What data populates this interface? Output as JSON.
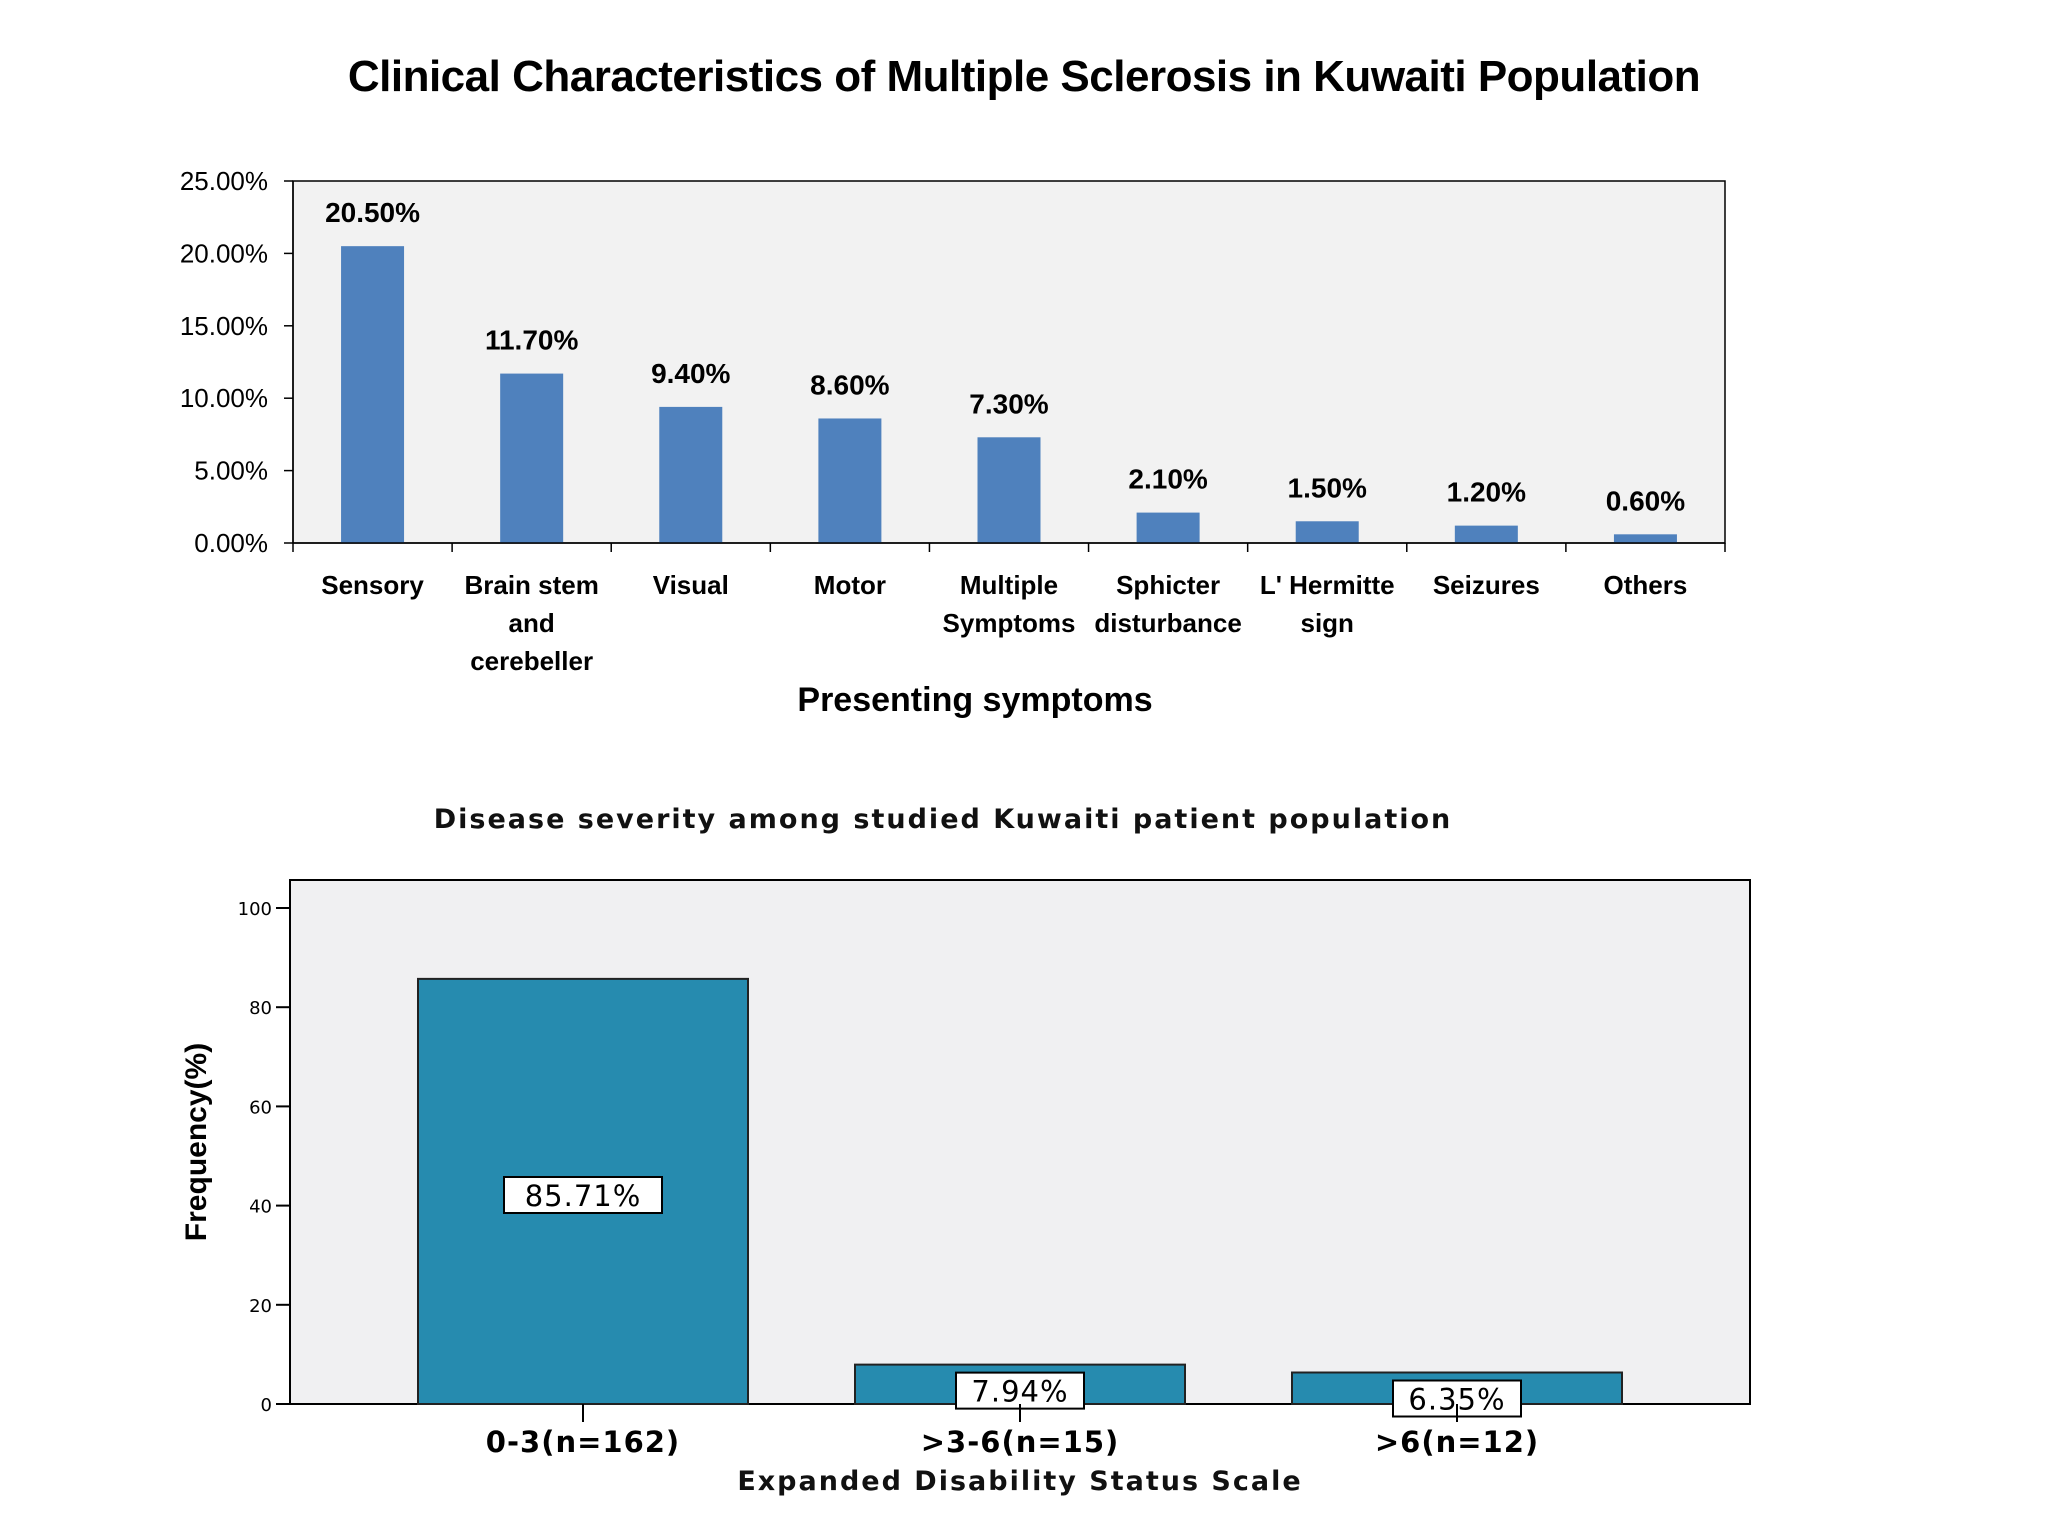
{
  "page": {
    "title": "Clinical Characteristics of Multiple Sclerosis in Kuwaiti Population"
  },
  "chart_data": [
    {
      "type": "bar",
      "title": "",
      "xlabel": "Presenting symptoms",
      "ylabel": "",
      "ylim": [
        0,
        25
      ],
      "yticks": [
        0,
        5,
        10,
        15,
        20,
        25
      ],
      "ytick_labels": [
        "0.00%",
        "5.00%",
        "10.00%",
        "15.00%",
        "20.00%",
        "25.00%"
      ],
      "categories": [
        [
          "Sensory"
        ],
        [
          "Brain stem",
          "and",
          "cerebeller"
        ],
        [
          "Visual"
        ],
        [
          "Motor"
        ],
        [
          "Multiple",
          "Symptoms"
        ],
        [
          "Sphicter",
          "disturbance"
        ],
        [
          "L' Hermitte",
          "sign"
        ],
        [
          "Seizures"
        ],
        [
          "Others"
        ]
      ],
      "values": [
        20.5,
        11.7,
        9.4,
        8.6,
        7.3,
        2.1,
        1.5,
        1.2,
        0.6
      ],
      "data_labels": [
        "20.50%",
        "11.70%",
        "9.40%",
        "8.60%",
        "7.30%",
        "2.10%",
        "1.50%",
        "1.20%",
        "0.60%"
      ],
      "bar_color": "#4F81BD",
      "plot_background": "#F2F2F2",
      "grid": false,
      "legend": "none"
    },
    {
      "type": "bar",
      "title": "Disease severity among studied Kuwaiti patient population",
      "xlabel": "Expanded Disability Status Scale",
      "ylabel": "Frequency(%)",
      "ylim": [
        0,
        100
      ],
      "yticks": [
        0,
        20,
        40,
        60,
        80,
        100
      ],
      "ytick_labels": [
        "0",
        "20",
        "40",
        "60",
        "80",
        "100"
      ],
      "categories": [
        "0-3(n=162)",
        ">3-6(n=15)",
        ">6(n=12)"
      ],
      "values": [
        85.71,
        7.94,
        6.35
      ],
      "data_labels": [
        "85.71%",
        "7.94%",
        "6.35%"
      ],
      "bar_color": "#268BAF",
      "plot_background": "#F0F0F2",
      "grid": false,
      "legend": "none"
    }
  ]
}
